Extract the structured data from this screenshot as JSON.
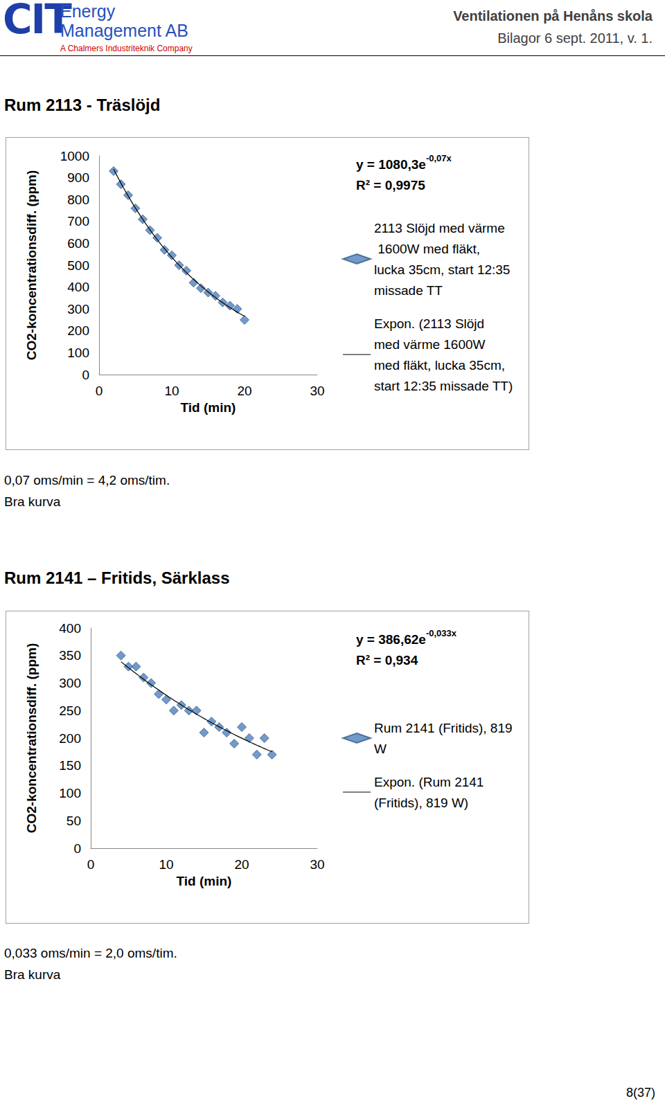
{
  "header": {
    "logo": "CIT",
    "company": [
      "Energy",
      "Management AB"
    ],
    "tagline": "A Chalmers Industriteknik Company",
    "title": "Ventilationen på Henåns skola",
    "subtitle": "Bilagor 6 sept. 2011, v. 1."
  },
  "sections": [
    {
      "heading": "Rum 2113 - Träslöjd",
      "notes": [
        "0,07 oms/min = 4,2 oms/tim.",
        "Bra kurva"
      ]
    },
    {
      "heading": "Rum 2141 – Fritids, Särklass",
      "notes": [
        "0,033 oms/min = 2,0 oms/tim.",
        "Bra kurva"
      ]
    }
  ],
  "chart_data": [
    {
      "type": "scatter",
      "x_label": "Tid (min)",
      "y_label": "CO2-koncentrationsdiff. (ppm)",
      "xlim": [
        0,
        30
      ],
      "xticks": [
        0,
        10,
        20,
        30
      ],
      "ylim": [
        0,
        1000
      ],
      "yticks": [
        0,
        100,
        200,
        300,
        400,
        500,
        600,
        700,
        800,
        900,
        1000
      ],
      "grid": false,
      "legend": "right",
      "series": [
        {
          "name": "2113 Slöjd med värme 1600W med fläkt, lucka 35cm, start 12:35 missade TT",
          "color": "#4f81bd",
          "marker": "diamond",
          "x": [
            2,
            3,
            4,
            5,
            6,
            7,
            8,
            9,
            10,
            11,
            12,
            13,
            14,
            15,
            16,
            17,
            18,
            19,
            20
          ],
          "values": [
            930,
            870,
            820,
            760,
            710,
            660,
            625,
            570,
            545,
            500,
            475,
            420,
            395,
            375,
            360,
            330,
            315,
            300,
            250
          ]
        }
      ],
      "trendline": {
        "name": "Expon. (2113 Slöjd med värme 1600W med fläkt, lucka 35cm, start 12:35 missade TT)",
        "color": "#000000",
        "line_style": "solid",
        "a": 1080.3,
        "k": -0.07,
        "x_from": 2,
        "x_to": 20,
        "equation_base": "y = 1080,3e",
        "equation_exponent": "-0,07x",
        "r2_label": "R² = 0,9975"
      }
    },
    {
      "type": "scatter",
      "x_label": "Tid (min)",
      "y_label": "CO2-koncentrationsdiff. (ppm)",
      "xlim": [
        0,
        30
      ],
      "xticks": [
        0,
        10,
        20,
        30
      ],
      "ylim": [
        0,
        400
      ],
      "yticks": [
        0,
        50,
        100,
        150,
        200,
        250,
        300,
        350,
        400
      ],
      "grid": false,
      "legend": "right",
      "series": [
        {
          "name": "Rum 2141 (Fritids), 819 W",
          "color": "#4f81bd",
          "marker": "diamond",
          "x": [
            4,
            5,
            6,
            7,
            8,
            9,
            10,
            11,
            12,
            13,
            14,
            15,
            16,
            17,
            18,
            19,
            20,
            21,
            22,
            23,
            24
          ],
          "values": [
            350,
            330,
            330,
            310,
            300,
            280,
            270,
            250,
            260,
            250,
            250,
            210,
            230,
            220,
            210,
            190,
            220,
            200,
            170,
            200,
            170
          ]
        }
      ],
      "trendline": {
        "name": "Expon. (Rum 2141 (Fritids), 819 W)",
        "color": "#000000",
        "line_style": "solid",
        "a": 386.62,
        "k": -0.033,
        "x_from": 4,
        "x_to": 24,
        "equation_base": "y = 386,62e",
        "equation_exponent": "-0,033x",
        "r2_label": "R² = 0,934"
      }
    }
  ],
  "page_number": "8(37)"
}
